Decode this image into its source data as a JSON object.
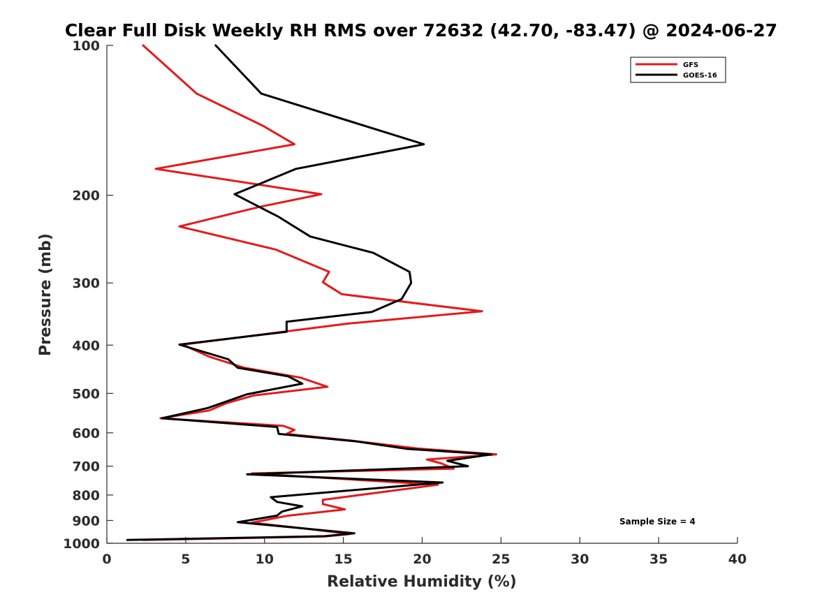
{
  "chart_data": {
    "type": "line",
    "title": "Clear Full Disk Weekly RH RMS over 72632 (42.70, -83.47) @ 2024-06-27",
    "xlabel": "Relative Humidity (%)",
    "ylabel": "Pressure (mb)",
    "xlim": [
      0,
      40
    ],
    "ylim": [
      100,
      1000
    ],
    "y_scale": "log",
    "y_reversed": true,
    "grid": false,
    "legend_position": "top-right",
    "annotation": "Sample Size = 4",
    "x_ticks": [
      "0",
      "5",
      "10",
      "15",
      "20",
      "25",
      "30",
      "35",
      "40"
    ],
    "y_ticks": [
      "100",
      "200",
      "300",
      "400",
      "500",
      "600",
      "700",
      "800",
      "900",
      "1000"
    ],
    "series": [
      {
        "name": "GFS",
        "color": "#e41a1c",
        "points": [
          [
            2.3,
            100
          ],
          [
            5.7,
            125
          ],
          [
            9.9,
            145
          ],
          [
            11.9,
            158
          ],
          [
            3.1,
            177
          ],
          [
            13.6,
            199
          ],
          [
            9.7,
            211
          ],
          [
            4.6,
            231
          ],
          [
            10.7,
            257
          ],
          [
            14.1,
            285
          ],
          [
            13.7,
            299
          ],
          [
            14.9,
            316
          ],
          [
            23.8,
            342
          ],
          [
            15.3,
            362
          ],
          [
            9.5,
            382
          ],
          [
            4.8,
            399
          ],
          [
            6.5,
            422
          ],
          [
            8.7,
            444
          ],
          [
            12.3,
            465
          ],
          [
            14.0,
            485
          ],
          [
            9.3,
            505
          ],
          [
            7.6,
            523
          ],
          [
            6.5,
            541
          ],
          [
            3.4,
            561
          ],
          [
            11.2,
            581
          ],
          [
            11.9,
            592
          ],
          [
            11.4,
            603
          ],
          [
            15.5,
            622
          ],
          [
            19.7,
            645
          ],
          [
            24.7,
            663
          ],
          [
            20.3,
            679
          ],
          [
            21.2,
            691
          ],
          [
            22.0,
            708
          ],
          [
            9.2,
            724
          ],
          [
            21.0,
            763
          ],
          [
            13.7,
            818
          ],
          [
            13.7,
            834
          ],
          [
            15.1,
            855
          ],
          [
            11.4,
            881
          ],
          [
            9.2,
            909
          ],
          [
            12.8,
            936
          ],
          [
            15.4,
            958
          ],
          [
            13.8,
            969
          ],
          [
            2.3,
            985
          ]
        ]
      },
      {
        "name": "GOES-16",
        "color": "#000000",
        "points": [
          [
            6.9,
            100
          ],
          [
            9.8,
            125
          ],
          [
            20.1,
            158
          ],
          [
            12.0,
            177
          ],
          [
            8.1,
            199
          ],
          [
            10.9,
            221
          ],
          [
            12.9,
            242
          ],
          [
            16.9,
            261
          ],
          [
            19.2,
            285
          ],
          [
            19.3,
            300
          ],
          [
            18.7,
            323
          ],
          [
            16.8,
            343
          ],
          [
            11.4,
            359
          ],
          [
            11.4,
            376
          ],
          [
            4.6,
            399
          ],
          [
            7.7,
            427
          ],
          [
            8.3,
            444
          ],
          [
            11.5,
            462
          ],
          [
            12.4,
            478
          ],
          [
            8.9,
            502
          ],
          [
            6.4,
            535
          ],
          [
            3.5,
            561
          ],
          [
            10.8,
            584
          ],
          [
            10.9,
            603
          ],
          [
            15.8,
            624
          ],
          [
            19.0,
            646
          ],
          [
            24.4,
            663
          ],
          [
            21.6,
            683
          ],
          [
            22.9,
            700
          ],
          [
            8.9,
            727
          ],
          [
            21.3,
            755
          ],
          [
            10.4,
            808
          ],
          [
            10.8,
            826
          ],
          [
            12.4,
            843
          ],
          [
            11.1,
            864
          ],
          [
            10.8,
            880
          ],
          [
            8.3,
            907
          ],
          [
            15.7,
            955
          ],
          [
            13.8,
            968
          ],
          [
            1.3,
            985
          ]
        ]
      }
    ]
  }
}
